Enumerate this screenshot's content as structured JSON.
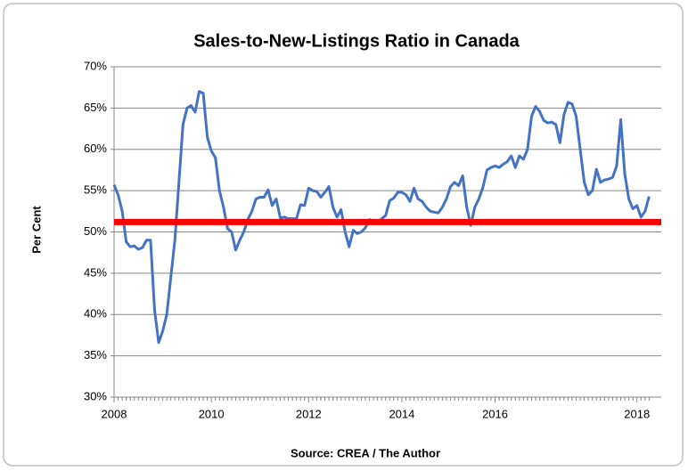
{
  "chart_data": {
    "type": "line",
    "title": "Sales-to-New-Listings Ratio in Canada",
    "y_label": "Per Cent",
    "source": "Source:  CREA  / The Author",
    "categories": [
      "2008",
      null,
      null,
      null,
      null,
      null,
      null,
      null,
      null,
      null,
      null,
      null,
      null,
      null,
      null,
      null,
      null,
      null,
      null,
      null,
      null,
      null,
      null,
      null,
      "2010",
      null,
      null,
      null,
      null,
      null,
      null,
      null,
      null,
      null,
      null,
      null,
      null,
      null,
      null,
      null,
      null,
      null,
      null,
      null,
      null,
      null,
      null,
      null,
      "2012",
      null,
      null,
      null,
      null,
      null,
      null,
      null,
      null,
      null,
      null,
      null,
      null,
      null,
      null,
      null,
      null,
      null,
      null,
      null,
      null,
      null,
      null,
      "2014",
      null,
      null,
      null,
      null,
      null,
      null,
      null,
      null,
      null,
      null,
      null,
      null,
      null,
      null,
      null,
      null,
      null,
      null,
      null,
      null,
      null,
      null,
      "2016",
      null,
      null,
      null,
      null,
      null,
      null,
      null,
      null,
      null,
      null,
      null,
      null,
      null,
      null,
      null,
      null,
      null,
      null,
      null,
      null,
      null,
      null,
      null,
      null,
      null,
      null,
      null,
      null,
      null,
      null,
      null,
      null,
      null,
      null,
      "2018",
      null,
      null,
      null
    ],
    "values": [
      55.7,
      54.5,
      52.5,
      48.8,
      48.2,
      48.3,
      47.9,
      48.1,
      49.0,
      49.0,
      40.5,
      36.6,
      38.0,
      40.0,
      44.5,
      49.0,
      56.0,
      63.0,
      65.0,
      65.3,
      64.5,
      67.0,
      66.8,
      61.5,
      59.8,
      59.0,
      55.0,
      53.0,
      50.4,
      50.0,
      47.8,
      49.0,
      50.0,
      51.5,
      52.5,
      54.0,
      54.2,
      54.2,
      55.1,
      53.2,
      54.0,
      51.7,
      51.8,
      51.6,
      51.6,
      51.6,
      53.3,
      53.2,
      55.3,
      55.0,
      54.9,
      54.2,
      54.8,
      55.5,
      53.0,
      51.8,
      52.7,
      50.0,
      48.2,
      50.2,
      49.8,
      50.0,
      50.5,
      51.5,
      51.3,
      51.0,
      51.6,
      52.0,
      53.8,
      54.1,
      54.8,
      54.8,
      54.5,
      53.7,
      55.3,
      54.0,
      53.7,
      53.0,
      52.5,
      52.4,
      52.3,
      53.0,
      54.0,
      55.5,
      56.0,
      55.6,
      56.8,
      53.0,
      50.8,
      53.0,
      54.0,
      55.4,
      57.5,
      57.8,
      58.0,
      57.8,
      58.2,
      58.5,
      59.2,
      57.8,
      59.2,
      58.8,
      60.0,
      64.0,
      65.2,
      64.6,
      63.5,
      63.2,
      63.3,
      63.0,
      60.8,
      64.2,
      65.7,
      65.5,
      64.0,
      60.0,
      56.0,
      54.5,
      55.0,
      57.6,
      56.0,
      56.3,
      56.4,
      56.6,
      58.0,
      63.6,
      57.0,
      54.0,
      52.8,
      53.2,
      51.8,
      52.5,
      54.3
    ],
    "color": "#4472c4",
    "reference_line": {
      "value": 51.2,
      "color": "#ff0000"
    },
    "ylim": [
      30,
      70
    ],
    "yticks": [
      {
        "value": 30,
        "label": "30%"
      },
      {
        "value": 35,
        "label": "35%"
      },
      {
        "value": 40,
        "label": "40%"
      },
      {
        "value": 45,
        "label": "45%"
      },
      {
        "value": 50,
        "label": "50%"
      },
      {
        "value": 55,
        "label": "55%"
      },
      {
        "value": 60,
        "label": "60%"
      },
      {
        "value": 65,
        "label": "65%"
      },
      {
        "value": 70,
        "label": "70%"
      }
    ],
    "grid": true
  }
}
